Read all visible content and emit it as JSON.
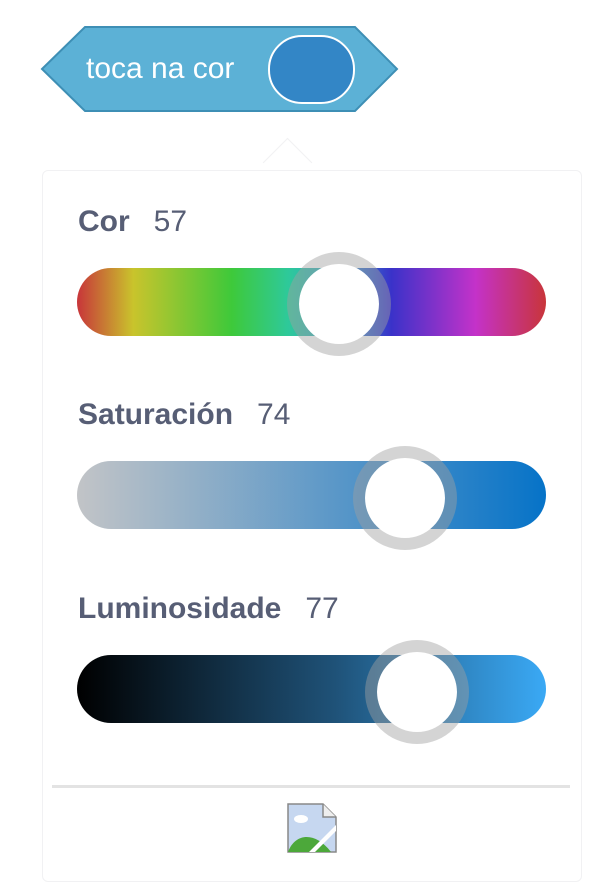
{
  "block": {
    "text": "toca na cor",
    "color": "#5cb1d6",
    "swatch_color": "#3386c6"
  },
  "picker": {
    "sliders": [
      {
        "label": "Cor",
        "value": "57",
        "fraction": 0.57
      },
      {
        "label": "Saturación",
        "value": "74",
        "fraction": 0.74
      },
      {
        "label": "Luminosidade",
        "value": "77",
        "fraction": 0.77
      }
    ],
    "eyedropper_icon": "broken-image-icon"
  }
}
